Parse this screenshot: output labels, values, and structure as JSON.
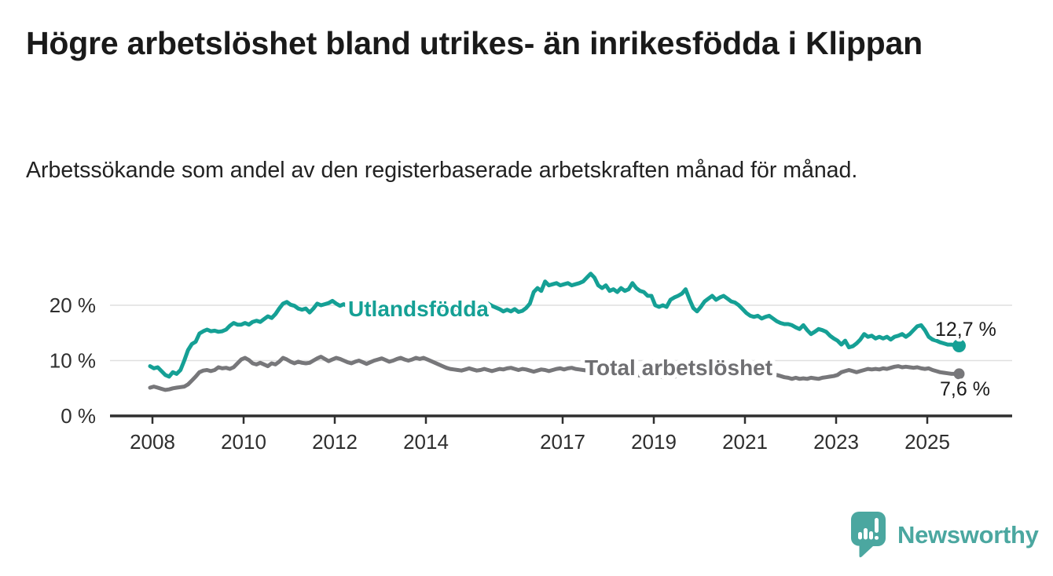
{
  "title": "Högre arbetslöshet bland utrikes- än inrikesfödda i Klippan",
  "subtitle": "Arbetssökande som andel av den registerbaserade arbetskraften månad för månad.",
  "branding": {
    "logo_text": "Newsworthy",
    "color": "#4ba7a0"
  },
  "chart_data": {
    "type": "line",
    "frequency": "monthly",
    "x_start": "2008-01",
    "x_end": "2025-10",
    "grid": "horizontal",
    "ylim": [
      0,
      27
    ],
    "yticks": [
      0,
      10,
      20
    ],
    "ytick_labels": [
      "0 %",
      "10 %",
      "20 %"
    ],
    "xticks": [
      2008,
      2010,
      2012,
      2014,
      2017,
      2019,
      2021,
      2023,
      2025
    ],
    "series": [
      {
        "name": "Utlandsfödda",
        "color": "#15a095",
        "end_label": "12,7 %",
        "end_value": 12.7,
        "values": [
          9.0,
          8.6,
          8.8,
          8.1,
          7.4,
          7.1,
          7.9,
          7.6,
          8.3,
          10.0,
          11.9,
          13.0,
          13.4,
          14.9,
          15.3,
          15.6,
          15.3,
          15.4,
          15.2,
          15.3,
          15.6,
          16.3,
          16.8,
          16.5,
          16.5,
          16.8,
          16.5,
          17.0,
          17.2,
          17.0,
          17.5,
          18.0,
          17.7,
          18.4,
          19.4,
          20.3,
          20.6,
          20.1,
          19.9,
          19.4,
          19.2,
          19.4,
          18.7,
          19.4,
          20.3,
          20.0,
          20.2,
          20.4,
          20.8,
          20.3,
          19.9,
          20.2,
          19.8,
          19.6,
          19.9,
          20.1,
          19.7,
          19.9,
          20.2,
          20.0,
          19.8,
          20.1,
          20.4,
          20.0,
          19.7,
          19.9,
          20.2,
          19.8,
          19.5,
          19.8,
          20.0,
          19.7,
          19.9,
          20.2,
          19.8,
          19.5,
          19.7,
          19.4,
          19.6,
          19.9,
          19.5,
          19.2,
          19.5,
          19.8,
          19.6,
          19.9,
          20.1,
          19.8,
          20.0,
          20.3,
          19.9,
          19.6,
          19.3,
          18.9,
          19.2,
          18.9,
          19.3,
          18.8,
          19.0,
          19.5,
          20.3,
          22.4,
          23.1,
          22.6,
          24.3,
          23.6,
          23.8,
          24.0,
          23.6,
          23.8,
          24.0,
          23.6,
          23.8,
          24.0,
          24.3,
          25.0,
          25.7,
          25.0,
          23.6,
          23.1,
          23.6,
          22.6,
          22.9,
          22.4,
          23.1,
          22.6,
          22.9,
          24.0,
          23.1,
          22.6,
          22.4,
          21.7,
          21.7,
          20.0,
          19.7,
          20.0,
          19.7,
          21.0,
          21.4,
          21.7,
          22.1,
          22.9,
          21.1,
          19.5,
          18.9,
          19.7,
          20.7,
          21.2,
          21.7,
          21.0,
          21.4,
          21.7,
          21.2,
          20.7,
          20.5,
          20.0,
          19.3,
          18.6,
          18.1,
          17.9,
          18.1,
          17.6,
          17.9,
          18.1,
          17.6,
          17.1,
          16.8,
          16.6,
          16.6,
          16.4,
          16.0,
          15.7,
          16.4,
          15.5,
          14.8,
          15.2,
          15.7,
          15.5,
          15.2,
          14.5,
          14.0,
          13.6,
          12.9,
          13.6,
          12.4,
          12.6,
          13.1,
          13.8,
          14.8,
          14.3,
          14.5,
          14.0,
          14.3,
          14.0,
          14.3,
          13.8,
          14.3,
          14.5,
          14.8,
          14.3,
          14.8,
          15.5,
          16.2,
          16.4,
          15.5,
          14.3,
          13.8,
          13.6,
          13.3,
          13.1,
          12.9,
          12.9,
          12.8,
          12.7
        ]
      },
      {
        "name": "Total arbetslöshet",
        "color": "#77777a",
        "end_label": "7,6 %",
        "end_value": 7.6,
        "values": [
          5.1,
          5.3,
          5.1,
          4.9,
          4.7,
          4.8,
          5.0,
          5.1,
          5.2,
          5.3,
          5.7,
          6.4,
          7.1,
          7.9,
          8.2,
          8.3,
          8.1,
          8.3,
          8.8,
          8.6,
          8.7,
          8.5,
          8.8,
          9.5,
          10.2,
          10.5,
          10.1,
          9.5,
          9.3,
          9.6,
          9.3,
          9.0,
          9.5,
          9.3,
          9.8,
          10.5,
          10.2,
          9.8,
          9.5,
          9.8,
          9.6,
          9.5,
          9.6,
          10.0,
          10.4,
          10.7,
          10.3,
          9.9,
          10.2,
          10.5,
          10.3,
          10.0,
          9.7,
          9.5,
          9.8,
          10.0,
          9.7,
          9.4,
          9.7,
          10.0,
          10.2,
          10.4,
          10.1,
          9.8,
          10.0,
          10.3,
          10.5,
          10.2,
          10.0,
          10.2,
          10.5,
          10.3,
          10.5,
          10.2,
          9.9,
          9.6,
          9.3,
          9.0,
          8.7,
          8.5,
          8.4,
          8.3,
          8.2,
          8.4,
          8.6,
          8.4,
          8.2,
          8.3,
          8.5,
          8.3,
          8.1,
          8.3,
          8.5,
          8.4,
          8.6,
          8.7,
          8.5,
          8.3,
          8.5,
          8.4,
          8.2,
          8.0,
          8.2,
          8.4,
          8.3,
          8.1,
          8.3,
          8.5,
          8.6,
          8.4,
          8.6,
          8.7,
          8.5,
          8.4,
          8.3,
          8.2,
          8.1,
          8.0,
          8.0,
          7.9,
          7.9,
          7.8,
          7.8,
          7.7,
          7.6,
          7.5,
          7.5,
          7.4,
          7.4,
          7.3,
          7.3,
          7.2,
          7.2,
          7.1,
          7.1,
          7.0,
          7.0,
          7.1,
          7.1,
          7.2,
          7.2,
          7.3,
          7.4,
          7.5,
          7.6,
          7.8,
          8.2,
          8.7,
          8.9,
          9.0,
          8.9,
          8.8,
          8.7,
          8.6,
          8.5,
          8.4,
          8.3,
          8.2,
          8.1,
          8.0,
          7.9,
          7.8,
          7.7,
          7.6,
          7.5,
          7.4,
          7.2,
          7.0,
          6.9,
          6.7,
          6.9,
          6.7,
          6.8,
          6.7,
          6.9,
          6.8,
          6.7,
          6.9,
          7.0,
          7.1,
          7.2,
          7.4,
          7.9,
          8.1,
          8.3,
          8.1,
          7.9,
          8.1,
          8.3,
          8.5,
          8.4,
          8.5,
          8.4,
          8.6,
          8.5,
          8.7,
          8.9,
          9.0,
          8.8,
          8.9,
          8.8,
          8.7,
          8.8,
          8.6,
          8.5,
          8.6,
          8.3,
          8.1,
          7.9,
          7.8,
          7.7,
          7.6,
          7.6,
          7.6
        ]
      }
    ]
  }
}
